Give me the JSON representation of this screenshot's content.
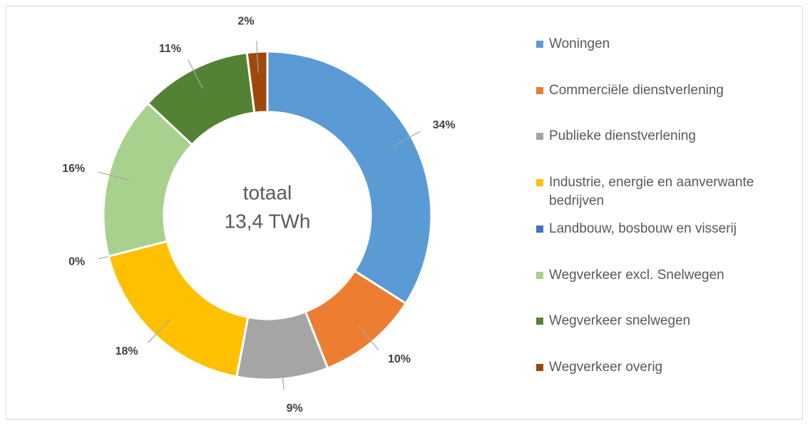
{
  "chart_data": {
    "type": "donut",
    "annotations": [
      "totaal",
      "13,4 TWh"
    ],
    "categories": [
      "Woningen",
      "Commerciële dienstverlening",
      "Publieke dienstverlening",
      "Industrie, energie en aanverwante bedrijven",
      "Landbouw, bosbouw en visserij",
      "Wegverkeer excl. Snelwegen",
      "Wegverkeer snelwegen",
      "Wegverkeer overig"
    ],
    "values": [
      34,
      10,
      9,
      18,
      0,
      16,
      11,
      2
    ],
    "value_labels": [
      "34%",
      "10%",
      "9%",
      "18%",
      "0%",
      "16%",
      "11%",
      "2%"
    ],
    "colors": [
      "#5b9bd5",
      "#ed7d31",
      "#a5a5a5",
      "#ffc000",
      "#4472c4",
      "#a9d18e",
      "#548235",
      "#9e480e"
    ],
    "legend": "right"
  }
}
